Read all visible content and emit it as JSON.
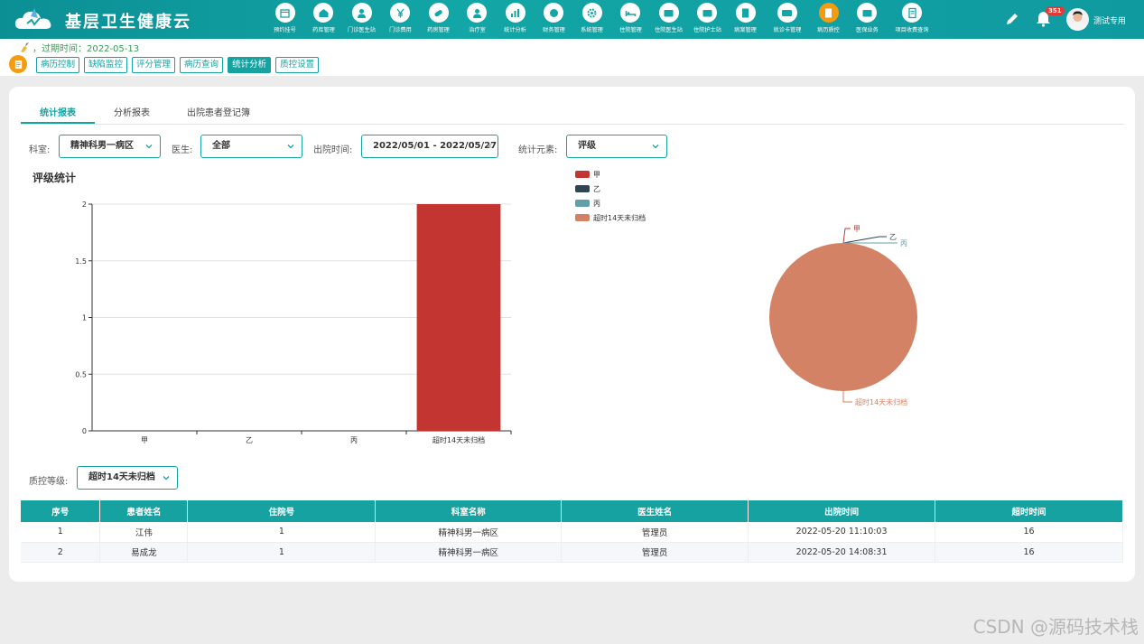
{
  "app": {
    "title": "基层卫生健康云"
  },
  "nav": [
    {
      "label": "预约挂号",
      "icon": "calendar-icon"
    },
    {
      "label": "药库管理",
      "icon": "warehouse-icon"
    },
    {
      "label": "门诊医生站",
      "icon": "doctor-icon"
    },
    {
      "label": "门诊费用",
      "icon": "yen-icon"
    },
    {
      "label": "药房管理",
      "icon": "pill-icon"
    },
    {
      "label": "治疗室",
      "icon": "nurse-icon"
    },
    {
      "label": "统计分析",
      "icon": "chart-icon"
    },
    {
      "label": "财务管理",
      "icon": "finance-icon"
    },
    {
      "label": "系统管理",
      "icon": "gear-icon"
    },
    {
      "label": "住院管理",
      "icon": "bed-icon"
    },
    {
      "label": "住院医生站",
      "icon": "id-card-icon"
    },
    {
      "label": "住院护士站",
      "icon": "nurse-card-icon"
    },
    {
      "label": "病案管理",
      "icon": "record-icon"
    },
    {
      "label": "就诊卡管理",
      "icon": "card-icon"
    },
    {
      "label": "病历质控",
      "icon": "document-icon"
    },
    {
      "label": "医保业务",
      "icon": "insurance-icon"
    },
    {
      "label": "项目收费查询",
      "icon": "price-list-icon"
    }
  ],
  "user": {
    "name": "测试专用",
    "notifications": "351"
  },
  "expire": {
    "text": "，过期时间：2022-05-13"
  },
  "subnav": [
    "病历控制",
    "缺陷监控",
    "评分管理",
    "病历查询",
    "统计分析",
    "质控设置"
  ],
  "tabs": [
    "统计报表",
    "分析报表",
    "出院患者登记簿"
  ],
  "filters": {
    "dept_label": "科室:",
    "dept_value": "精神科男一病区",
    "doctor_label": "医生:",
    "doctor_value": "全部",
    "date_label": "出院时间:",
    "date_value": "2022/05/01 - 2022/05/27",
    "element_label": "统计元素:",
    "element_value": "评级"
  },
  "chart_section_title": "评级统计",
  "chart_data": [
    {
      "type": "bar",
      "categories": [
        "甲",
        "乙",
        "丙",
        "超时14天未归档"
      ],
      "values": [
        0,
        0,
        0,
        2
      ],
      "ylim": [
        0,
        2
      ],
      "yticks": [
        "0",
        "0.5",
        "1",
        "1.5",
        "2"
      ],
      "bar_color": "#c23531",
      "grid": true
    },
    {
      "type": "pie",
      "labels": [
        "甲",
        "乙",
        "丙",
        "超时14天未归档"
      ],
      "values": [
        0,
        0,
        0,
        2
      ],
      "colors": [
        "#c23531",
        "#2f4554",
        "#61a0a8",
        "#d48265"
      ],
      "legend_position": "top-left"
    }
  ],
  "quality": {
    "label": "质控等级:",
    "value": "超时14天未归档"
  },
  "table": {
    "headers": [
      "序号",
      "患者姓名",
      "住院号",
      "科室名称",
      "医生姓名",
      "出院时间",
      "超时时间"
    ],
    "rows": [
      [
        "1",
        "江伟",
        "1",
        "精神科男一病区",
        "管理员",
        "2022-05-20 11:10:03",
        "16"
      ],
      [
        "2",
        "易成龙",
        "1",
        "精神科男一病区",
        "管理员",
        "2022-05-20 14:08:31",
        "16"
      ]
    ]
  },
  "watermark": "CSDN @源码技术栈"
}
